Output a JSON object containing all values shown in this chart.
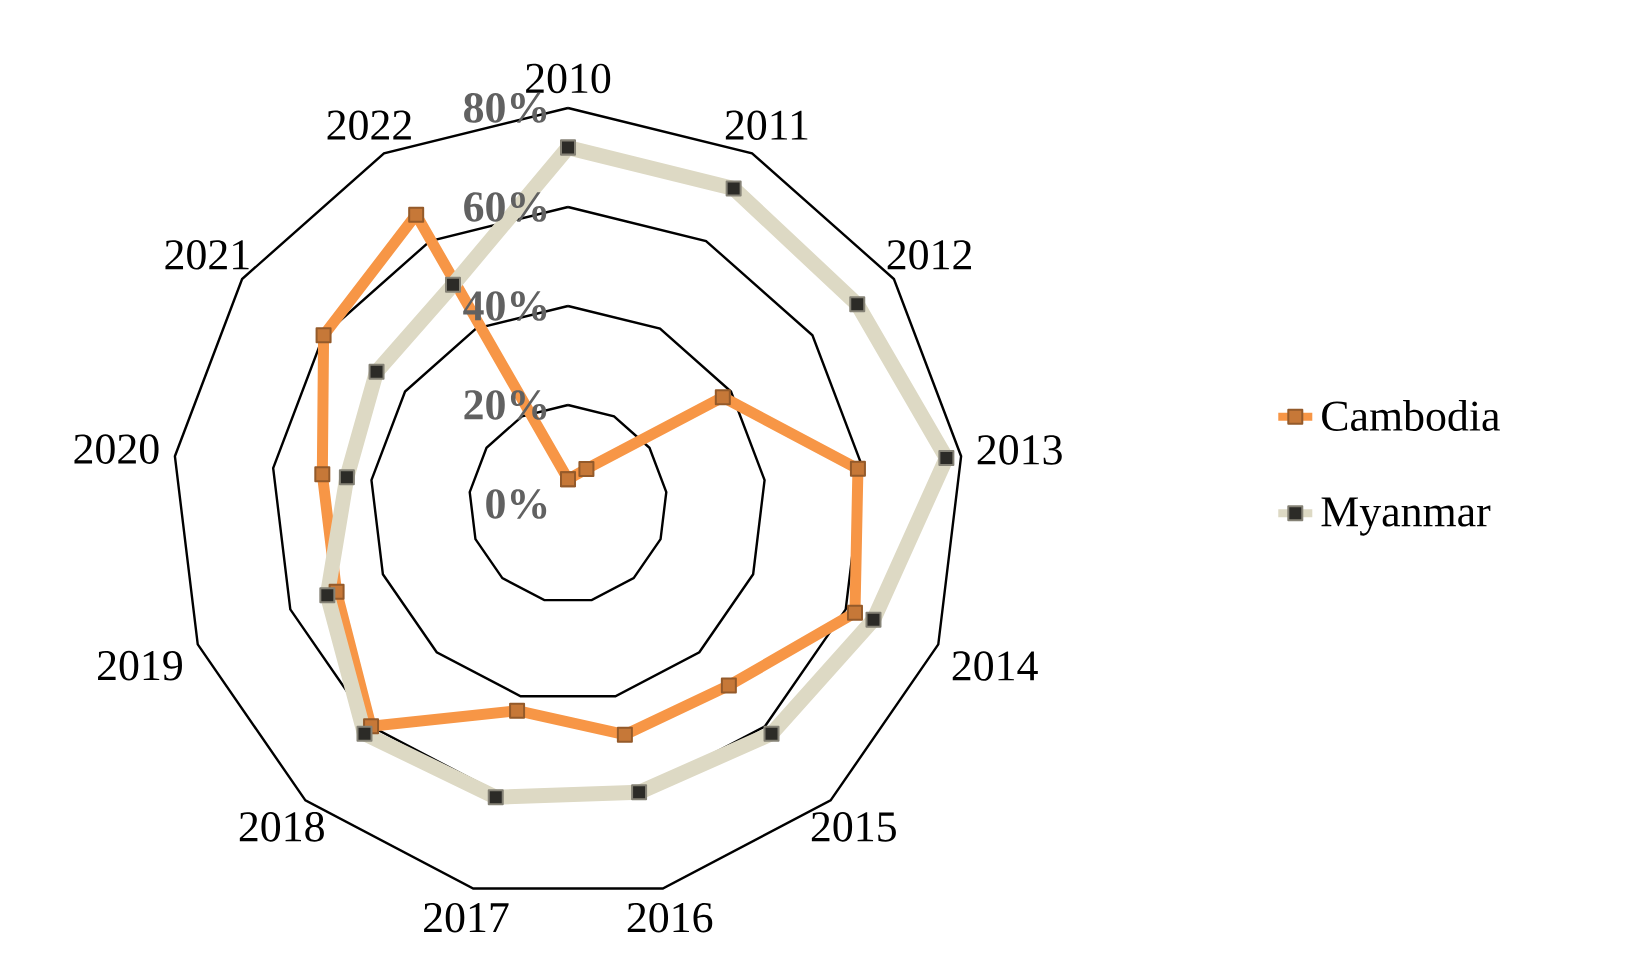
{
  "chart_data": {
    "type": "radar",
    "categories": [
      "2010",
      "2011",
      "2012",
      "2013",
      "2014",
      "2015",
      "2016",
      "2017",
      "2018",
      "2019",
      "2020",
      "2021",
      "2022"
    ],
    "series": [
      {
        "name": "Cambodia",
        "color": "#f79646",
        "values": [
          5,
          8,
          38,
          59,
          62,
          49,
          48,
          43,
          60,
          50,
          50,
          60,
          66
        ]
      },
      {
        "name": "Myanmar",
        "color": "#ddd9c4",
        "values": [
          72,
          72,
          71,
          77,
          66,
          62,
          60,
          61,
          62,
          52,
          45,
          47,
          50
        ]
      }
    ],
    "ylim": [
      0,
      80
    ],
    "yticks": [
      {
        "value": 0,
        "label": "0%"
      },
      {
        "value": 20,
        "label": "20%"
      },
      {
        "value": 40,
        "label": "40%"
      },
      {
        "value": 60,
        "label": "60%"
      },
      {
        "value": 80,
        "label": "80%"
      }
    ],
    "grid": true,
    "legend": "right",
    "marker": "square"
  }
}
